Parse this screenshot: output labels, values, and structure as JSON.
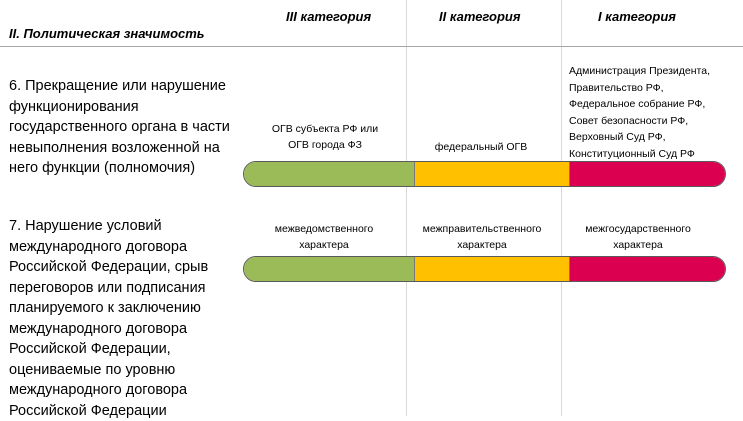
{
  "header": {
    "section_title": "II. Политическая значимость",
    "categories": [
      "III категория",
      "II категория",
      "I категория"
    ]
  },
  "colors": {
    "category_3": "#9bbb59",
    "category_2": "#ffc000",
    "category_1": "#dc0050"
  },
  "criteria": [
    {
      "text": "6. Прекращение или нарушение функционирования государственного органа в части невыполнения возложенной на него функции (полномочия)",
      "labels": {
        "category_3": "ОГВ субъекта РФ или ОГВ города ФЗ",
        "category_2": "федеральный ОГВ",
        "category_1": [
          "Администрация Президента,",
          "Правительство РФ,",
          "Федеральное собрание РФ,",
          "Совет безопасности РФ,",
          "Верховный Суд РФ,",
          "Конституционный Суд РФ"
        ]
      }
    },
    {
      "text": "7. Нарушение условий международного договора Российской Федерации, срыв переговоров или подписания планируемого к заключению международного договора Российской Федерации, оцениваемые по уровню международного договора Российской Федерации",
      "labels": {
        "category_3": "межведомственного характера",
        "category_2": "межправительственного характера",
        "category_1": "межгосударственного характера"
      }
    }
  ]
}
